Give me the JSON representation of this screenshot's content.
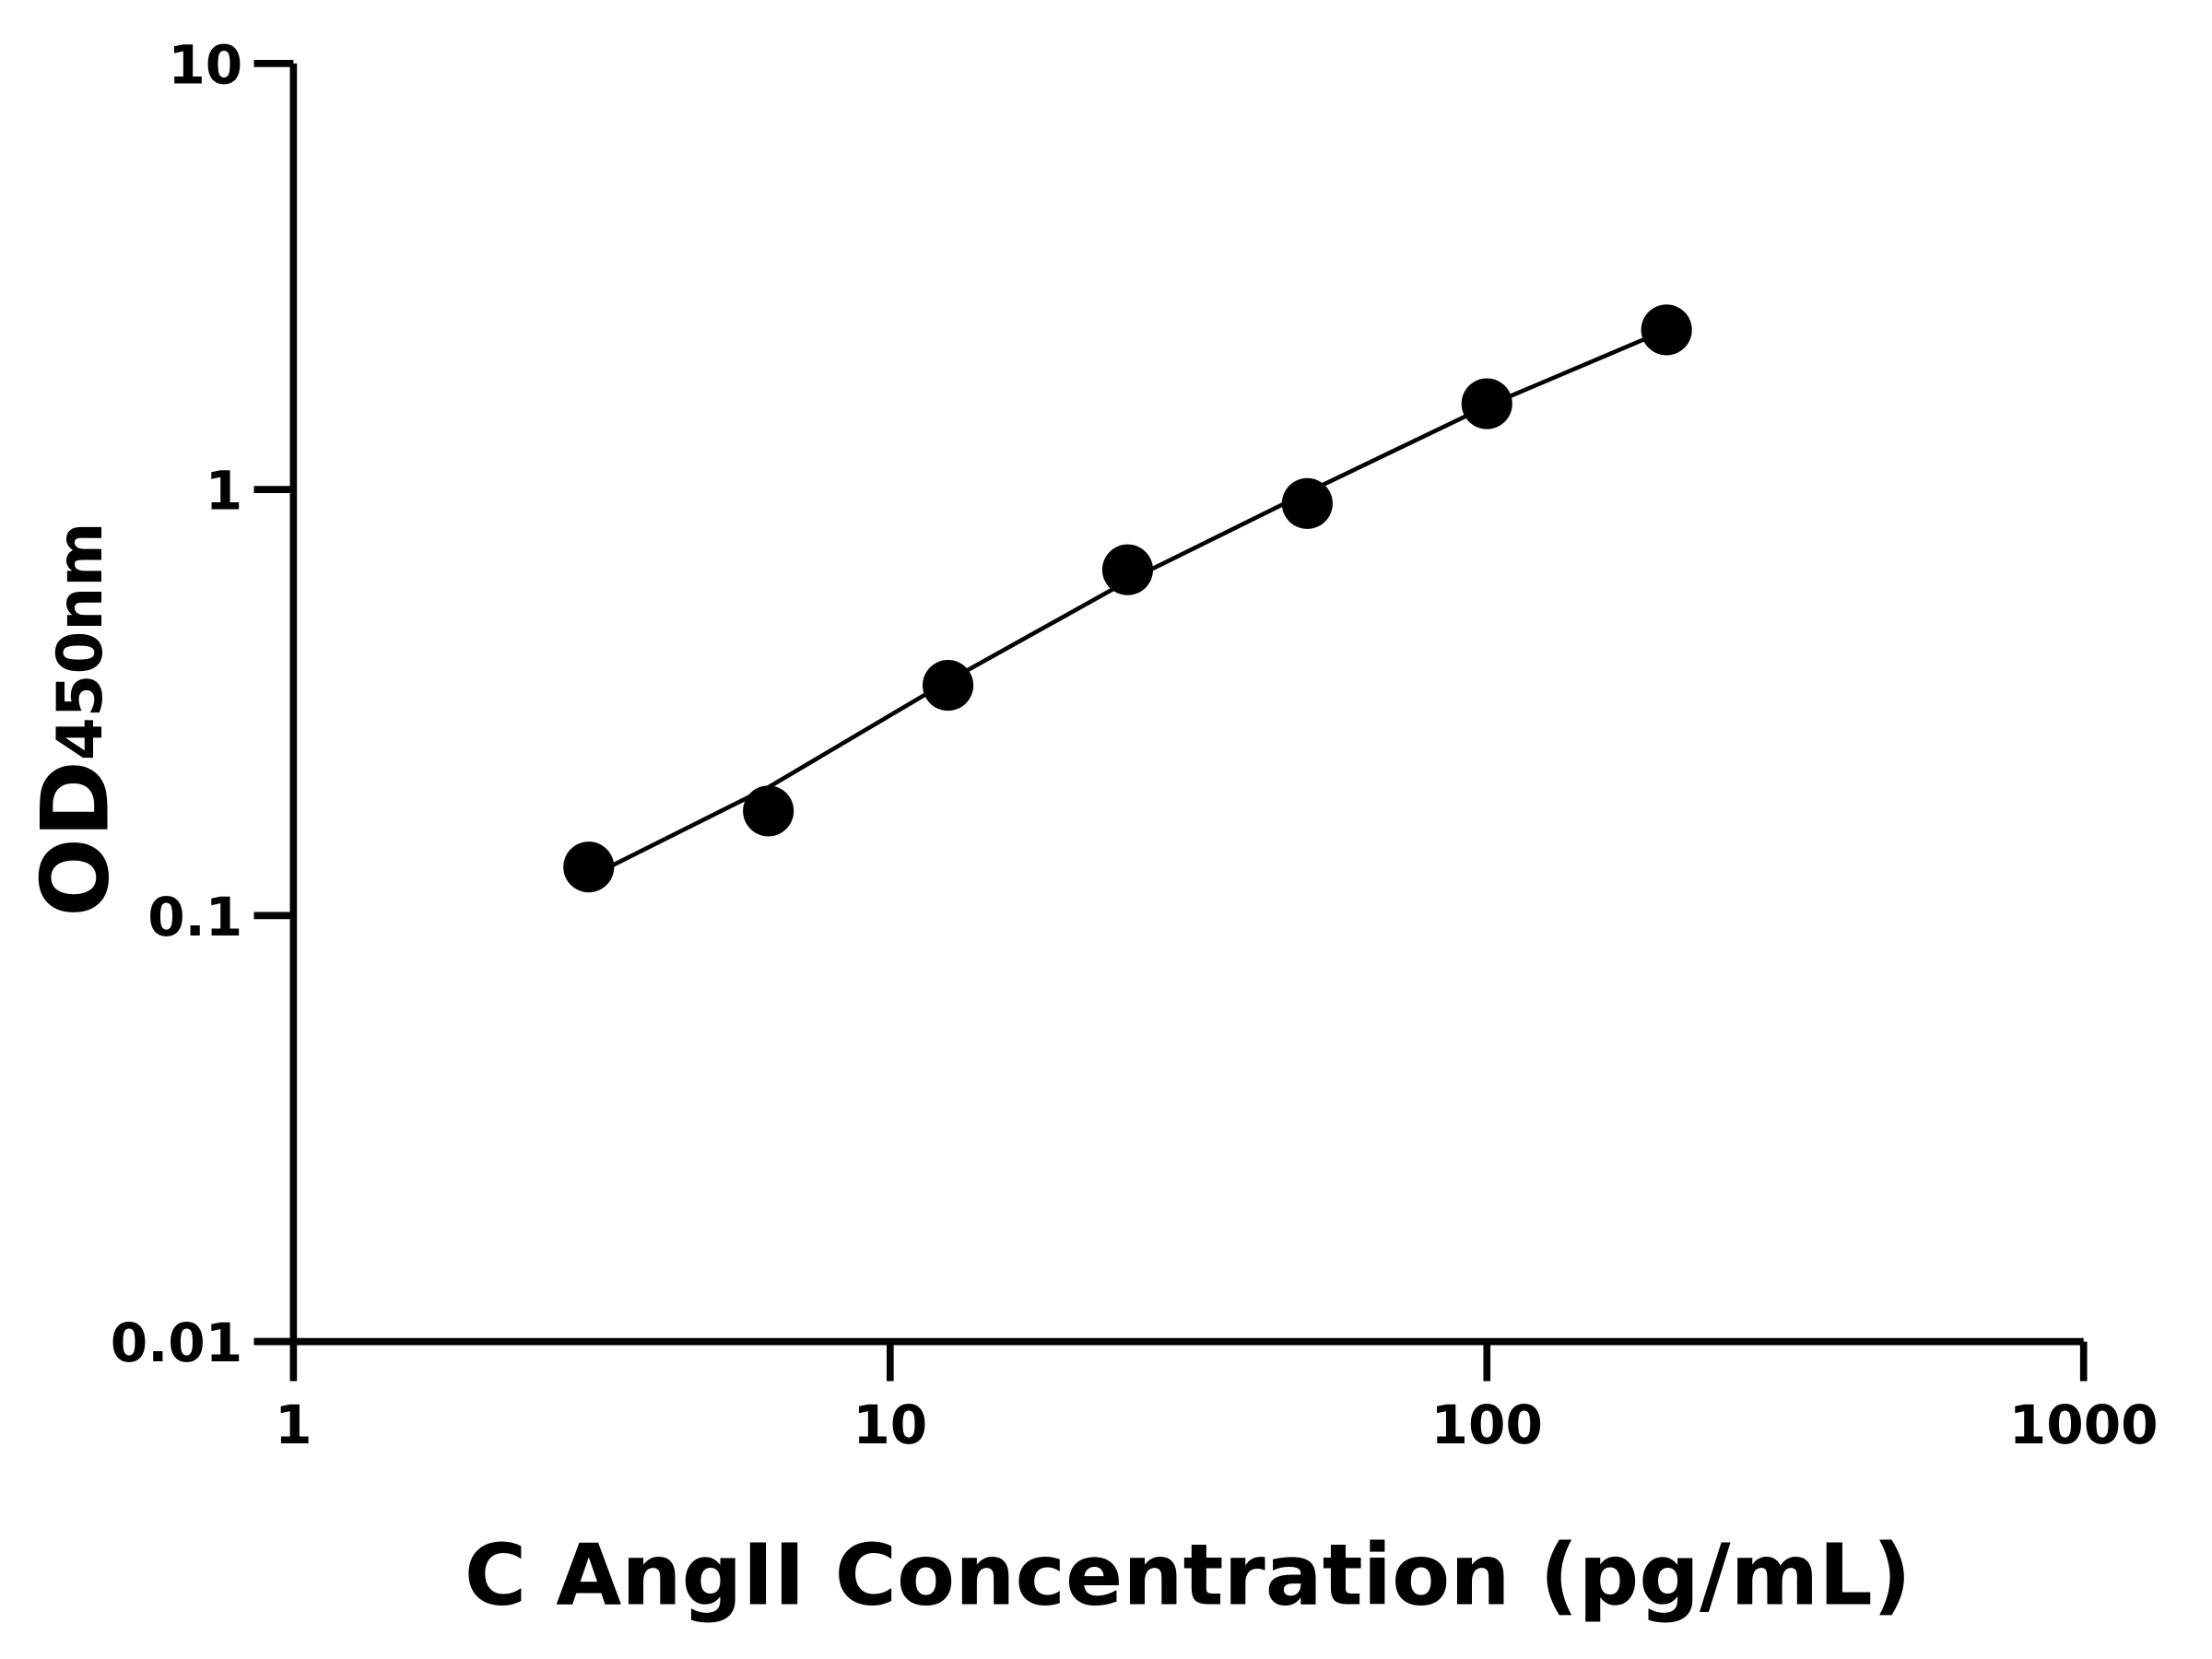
{
  "chart_data": {
    "type": "scatter",
    "title": "",
    "xlabel": "C AngII Concentration (pg/mL)",
    "ylabel_main": "OD",
    "ylabel_sub": "450nm",
    "x_scale": "log",
    "y_scale": "log",
    "xlim": [
      1,
      1000
    ],
    "ylim": [
      0.01,
      10
    ],
    "x_ticks": [
      1,
      10,
      100,
      1000
    ],
    "x_tick_labels": [
      "1",
      "10",
      "100",
      "1000"
    ],
    "y_ticks": [
      0.01,
      0.1,
      1,
      10
    ],
    "y_tick_labels": [
      "0.01",
      "0.1",
      "1",
      "10"
    ],
    "grid": false,
    "legend": "none",
    "series": [
      {
        "x": [
          3.125,
          6.25,
          12.5,
          25,
          50,
          100,
          200
        ],
        "y": [
          0.13,
          0.176,
          0.347,
          0.648,
          0.927,
          1.59,
          2.37
        ]
      }
    ],
    "fit_curve": {
      "x": [
        3.125,
        6.25,
        12.5,
        25,
        50,
        100,
        200
      ],
      "y": [
        0.123,
        0.2,
        0.355,
        0.61,
        0.985,
        1.57,
        2.37
      ]
    },
    "colors": {
      "marker": "#000000",
      "line": "#000000",
      "axis": "#000000"
    }
  }
}
